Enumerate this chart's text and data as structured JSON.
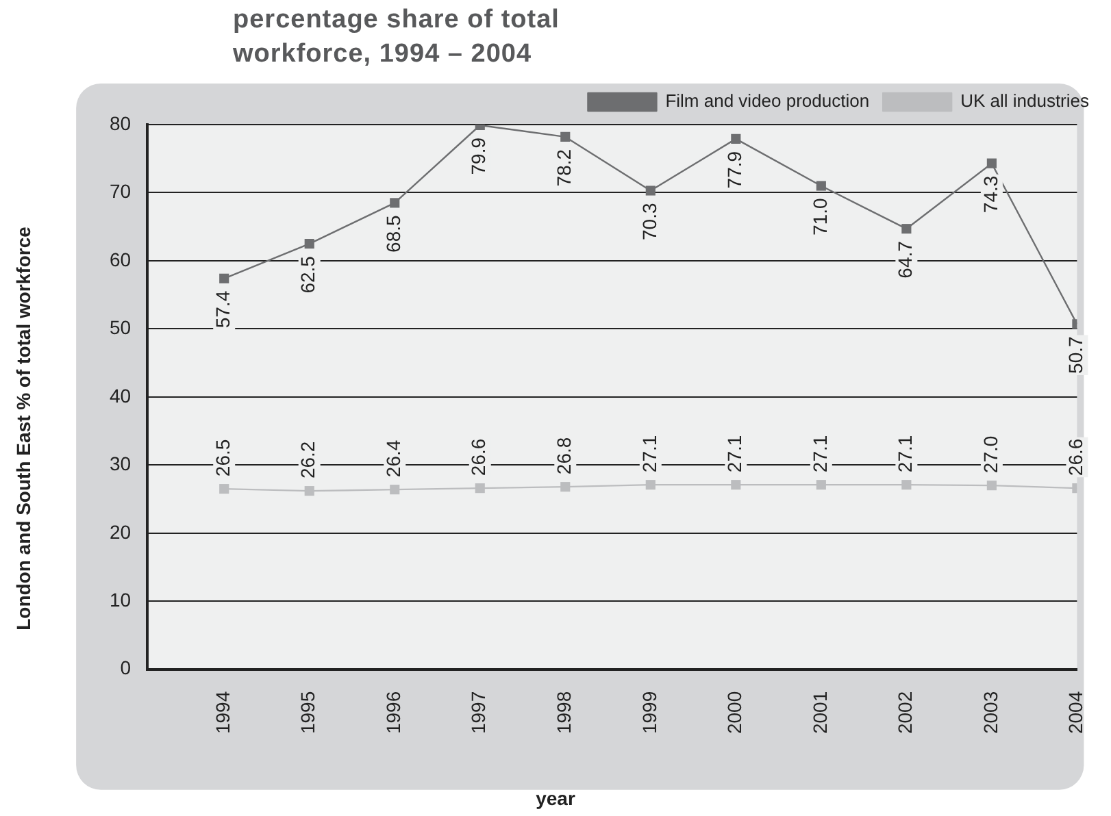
{
  "chart_data": {
    "type": "line",
    "title": "percentage share of total workforce, 1994 – 2004",
    "xlabel": "year",
    "ylabel": "London and South East % of total workforce",
    "x": [
      1994,
      1995,
      1996,
      1997,
      1998,
      1999,
      2000,
      2001,
      2002,
      2003,
      2004
    ],
    "series": [
      {
        "name": "Film and video production",
        "color": "#6d6e70",
        "values": [
          57.4,
          62.5,
          68.5,
          79.9,
          78.2,
          70.3,
          77.9,
          71.0,
          64.7,
          74.3,
          50.7
        ],
        "value_labels": [
          "57.4",
          "62.5",
          "68.5",
          "79.9",
          "78.2",
          "70.3",
          "77.9",
          "71.0",
          "64.7",
          "74.3",
          "50.7"
        ]
      },
      {
        "name": "UK all industries",
        "color": "#bcbdbf",
        "values": [
          26.5,
          26.2,
          26.4,
          26.6,
          26.8,
          27.1,
          27.1,
          27.1,
          27.1,
          27.0,
          26.6
        ],
        "value_labels": [
          "26.5",
          "26.2",
          "26.4",
          "26.6",
          "26.8",
          "27.1",
          "27.1",
          "27.1",
          "27.1",
          "27.0",
          "26.6"
        ]
      }
    ],
    "xlim": [
      1993.1,
      2004
    ],
    "xticks": [
      1994,
      1995,
      1996,
      1997,
      1998,
      1999,
      2000,
      2001,
      2002,
      2003,
      2004
    ],
    "ylim": [
      0,
      80
    ],
    "yticks": [
      0,
      10,
      20,
      30,
      40,
      50,
      60,
      70,
      80
    ],
    "grid": "y",
    "legend": "top right",
    "marker": "square",
    "line_style": "solid"
  }
}
